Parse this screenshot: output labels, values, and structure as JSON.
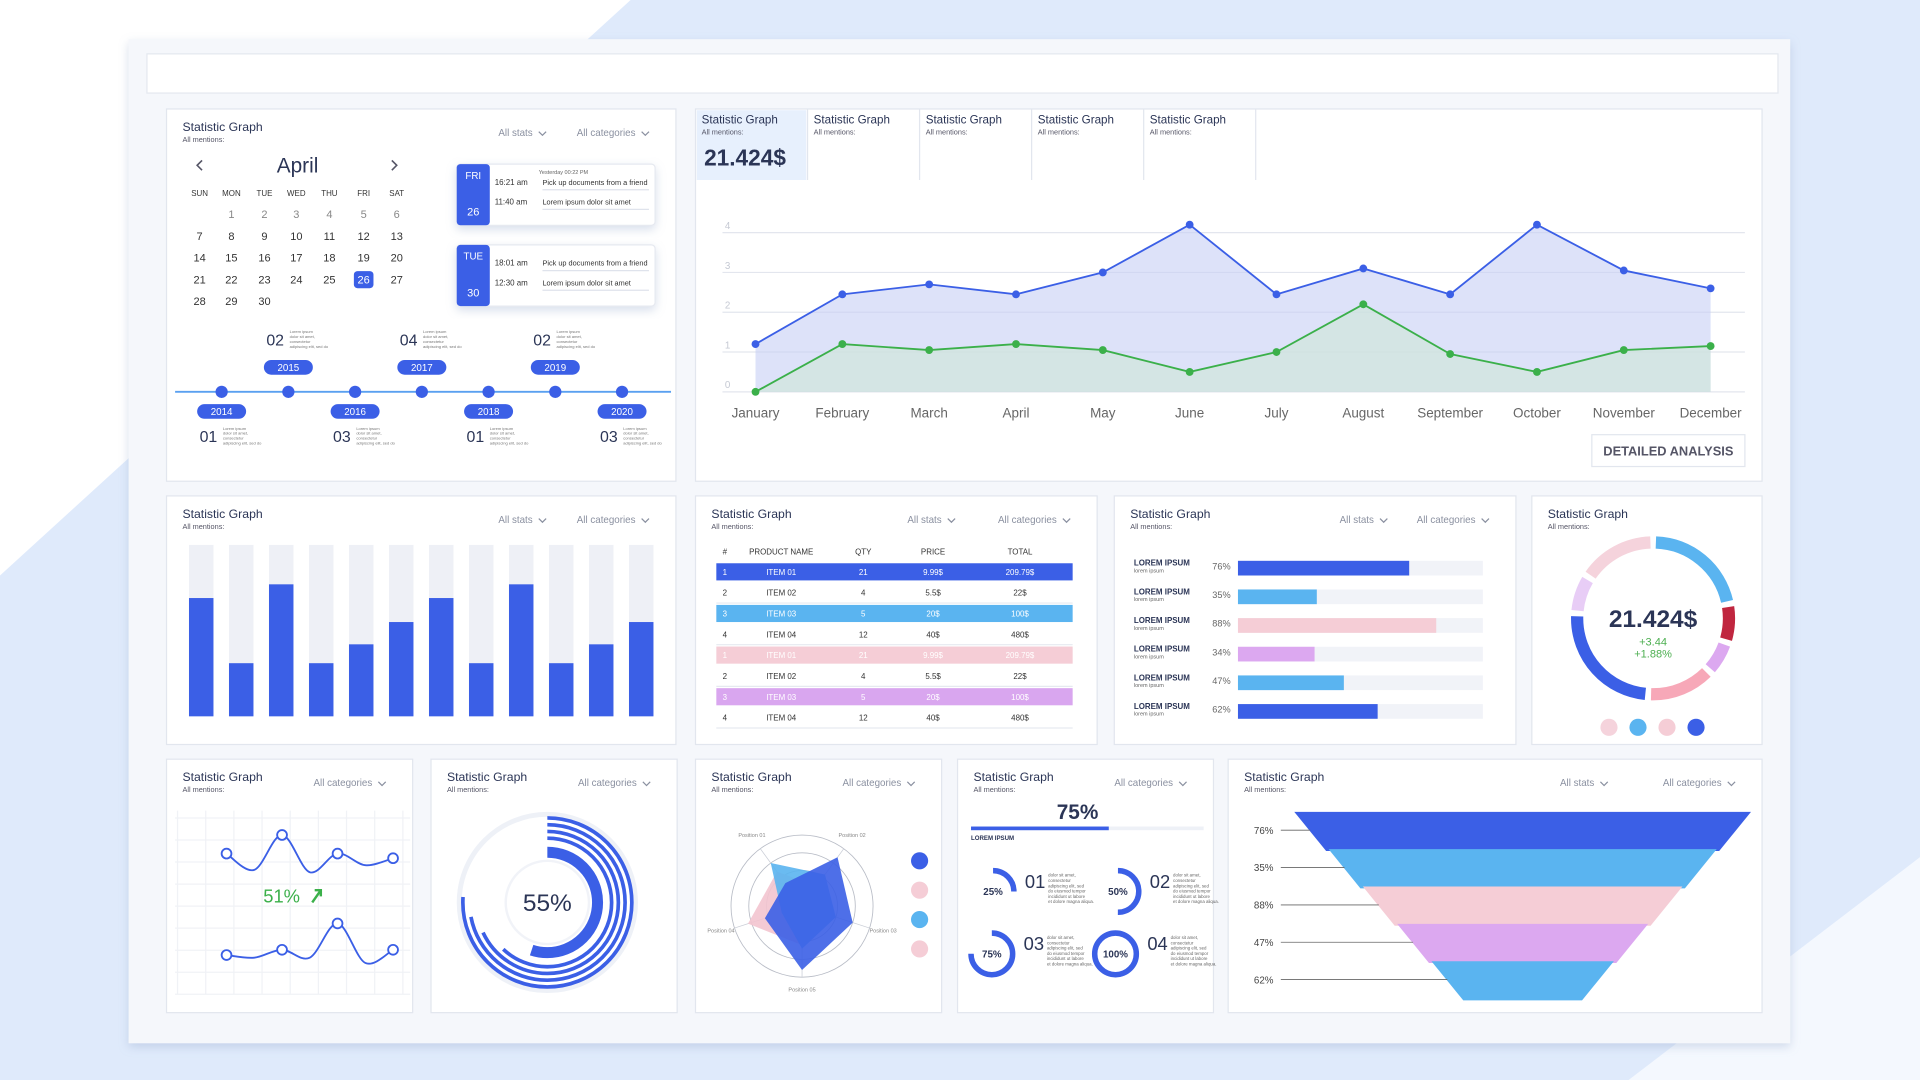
{
  "calendar": {
    "title": "Statistic Graph",
    "subtitle": "All mentions:",
    "filters": [
      "All stats",
      "All categories"
    ],
    "month": "April",
    "weekdays": [
      "SUN",
      "MON",
      "TUE",
      "WED",
      "THU",
      "FRI",
      "SAT"
    ],
    "days": [
      "1",
      "2",
      "3",
      "4",
      "5",
      "6",
      "7",
      "8",
      "9",
      "10",
      "11",
      "12",
      "13",
      "14",
      "15",
      "16",
      "17",
      "18",
      "19",
      "20",
      "21",
      "22",
      "23",
      "24",
      "25",
      "26",
      "27",
      "28",
      "29",
      "30"
    ],
    "selected_day": "26",
    "events": [
      {
        "day": "FRI",
        "date": "26",
        "header": "Yesterday 00:22 PM",
        "items": [
          {
            "time": "16:21 am",
            "text": "Pick up documents from a friend"
          },
          {
            "time": "11:40 am",
            "text": "Lorem ipsum dolor sit amet"
          }
        ]
      },
      {
        "day": "TUE",
        "date": "30",
        "items": [
          {
            "time": "18:01 am",
            "text": "Pick up documents from a friend"
          },
          {
            "time": "12:30 am",
            "text": "Lorem ipsum dolor sit amet"
          }
        ]
      }
    ],
    "timeline": {
      "years": [
        "2014",
        "2015",
        "2016",
        "2017",
        "2018",
        "2019",
        "2020"
      ],
      "counts": [
        "01",
        "02",
        "03",
        "04",
        "01",
        "02",
        "03"
      ],
      "note_lines": [
        "Lorem ipsum",
        "dolor sit amet,",
        "consectetur",
        "adipiscing elit, sed do"
      ]
    }
  },
  "line_panel": {
    "tabs": [
      {
        "title": "Statistic Graph",
        "subtitle": "All mentions:",
        "value": "21.424$"
      },
      {
        "title": "Statistic Graph",
        "subtitle": "All mentions:"
      },
      {
        "title": "Statistic Graph",
        "subtitle": "All mentions:"
      },
      {
        "title": "Statistic Graph",
        "subtitle": "All mentions:"
      },
      {
        "title": "Statistic Graph",
        "subtitle": "All mentions:"
      }
    ],
    "chart_data": {
      "type": "area",
      "categories": [
        "January",
        "February",
        "March",
        "April",
        "May",
        "June",
        "July",
        "August",
        "September",
        "October",
        "November",
        "December"
      ],
      "series": [
        {
          "color": "#3b5fe6",
          "fill": "#c7cff5",
          "values": [
            1.2,
            2.45,
            2.7,
            2.45,
            3.0,
            4.2,
            2.45,
            3.1,
            2.45,
            4.2,
            3.05,
            2.6
          ]
        },
        {
          "color": "#3bb04a",
          "fill": "#cfe7d6",
          "values": [
            0,
            1.2,
            1.05,
            1.2,
            1.05,
            0.5,
            1.0,
            2.2,
            0.95,
            0.5,
            1.05,
            1.15
          ]
        }
      ],
      "ylim": [
        0,
        4.4
      ],
      "yticks": [
        0,
        1,
        2,
        3,
        4
      ],
      "grid": true
    },
    "button": "DETAILED ANALYSIS"
  },
  "bar_panel": {
    "title": "Statistic Graph",
    "subtitle": "All mentions:",
    "filters": [
      "All stats",
      "All categories"
    ],
    "chart_data": {
      "type": "bar",
      "categories": [
        null,
        null,
        null,
        null,
        null,
        null,
        null,
        null,
        null,
        null,
        null,
        null
      ],
      "values": [
        69,
        31,
        77,
        31,
        42,
        55,
        69,
        31,
        77,
        31,
        42,
        55
      ],
      "ylim": [
        0,
        100
      ],
      "color": "#3b5fe6",
      "track_color": "#eef0f6"
    }
  },
  "table_panel": {
    "title": "Statistic Graph",
    "subtitle": "All mentions:",
    "filters": [
      "All stats",
      "All categories"
    ],
    "headers": [
      "#",
      "PRODUCT NAME",
      "QTY",
      "PRICE",
      "TOTAL"
    ],
    "rows": [
      [
        "1",
        "ITEM 01",
        "21",
        "9.99$",
        "209.79$"
      ],
      [
        "2",
        "ITEM 02",
        "4",
        "5.5$",
        "22$"
      ],
      [
        "3",
        "ITEM 03",
        "5",
        "20$",
        "100$"
      ],
      [
        "4",
        "ITEM 04",
        "12",
        "40$",
        "480$"
      ],
      [
        "1",
        "ITEM 01",
        "21",
        "9.99$",
        "209.79$"
      ],
      [
        "2",
        "ITEM 02",
        "4",
        "5.5$",
        "22$"
      ],
      [
        "3",
        "ITEM 03",
        "5",
        "20$",
        "100$"
      ],
      [
        "4",
        "ITEM 04",
        "12",
        "40$",
        "480$"
      ]
    ],
    "highlights": [
      "#3b5fe6",
      null,
      "#5ab4f0",
      null,
      "#f5cdd6",
      null,
      "#d9a6ef",
      null
    ]
  },
  "hbar_panel": {
    "title": "Statistic Graph",
    "subtitle": "All mentions:",
    "filters": [
      "All stats",
      "All categories"
    ],
    "chart_data": {
      "type": "hbar",
      "categories": [
        "LOREM IPSUM",
        "LOREM IPSUM",
        "LOREM IPSUM",
        "LOREM IPSUM",
        "LOREM IPSUM",
        "LOREM IPSUM"
      ],
      "sublabels": [
        "lorem ipsum",
        "lorem ipsum",
        "lorem ipsum",
        "lorem ipsum",
        "lorem ipsum",
        "lorem ipsum"
      ],
      "values": [
        76,
        35,
        88,
        34,
        47,
        62
      ],
      "value_labels": [
        "76%",
        "35%",
        "88%",
        "34%",
        "47%",
        "62%"
      ],
      "colors": [
        "#3b5fe6",
        "#5ab4f0",
        "#f5cdd6",
        "#dca8f0",
        "#5ab4f0",
        "#3b5fe6"
      ],
      "xlim": [
        0,
        100
      ]
    }
  },
  "donut_panel": {
    "title": "Statistic Graph",
    "subtitle": "All mentions:",
    "value": "21.424$",
    "changes": [
      "+3.44",
      "+1.88%"
    ],
    "chart_data": {
      "type": "donut",
      "values": [
        22,
        8,
        7,
        14,
        25,
        8,
        16
      ],
      "colors": [
        "#5ab4f0",
        "#c0263f",
        "#dca8f0",
        "#f7a8b8",
        "#3b5fe6",
        "#e8cdf6",
        "#f5d3dc"
      ]
    },
    "legend_colors": [
      "#f5d3dc",
      "#5ab4f0",
      "#f5cdd6",
      "#3b5fe6"
    ]
  },
  "spark_panel": {
    "title": "Statistic Graph",
    "subtitle": "All mentions:",
    "filters": [
      "All categories"
    ],
    "change": "51%",
    "chart_data": {
      "type": "line",
      "series": [
        {
          "color": "#3b5fe6",
          "values": [
            0.55,
            0.2,
            0.95,
            0.15,
            0.55,
            0.3,
            0.45
          ]
        },
        {
          "color": "#3b5fe6",
          "values": [
            0.35,
            0.3,
            0.45,
            0.3,
            0.95,
            0.2,
            0.45
          ]
        }
      ],
      "ylim": [
        0,
        1
      ]
    }
  },
  "radial_panel": {
    "title": "Statistic Graph",
    "subtitle": "All mentions:",
    "filters": [
      "All categories"
    ],
    "center_label": "55%",
    "chart_data": {
      "type": "radial",
      "values": [
        55,
        62,
        68,
        72,
        76
      ],
      "ylim": [
        0,
        100
      ],
      "color": "#3b5fe6"
    }
  },
  "radar_panel": {
    "title": "Statistic Graph",
    "subtitle": "All mentions:",
    "filters": [
      "All categories"
    ],
    "chart_data": {
      "type": "radar",
      "axes": [
        "Position 01",
        "Position 02",
        "Position 03",
        "Position 05",
        "Position 04"
      ],
      "rlim": [
        0,
        1
      ],
      "series": [
        {
          "color": "#f3c4cf",
          "values": [
            0.6,
            0.35,
            0.45,
            0.55,
            0.8
          ]
        },
        {
          "color": "#5ab4f0",
          "values": [
            0.75,
            0.55,
            0.5,
            0.6,
            0.3
          ]
        },
        {
          "color": "#3b5fe6",
          "values": [
            0.4,
            0.85,
            0.75,
            0.9,
            0.55
          ]
        }
      ]
    },
    "legend_colors": [
      "#3b5fe6",
      "#f5cdd6",
      "#5ab4f0",
      "#f5cdd6"
    ]
  },
  "progress_panel": {
    "title": "Statistic Graph",
    "subtitle": "All mentions:",
    "filters": [
      "All categories"
    ],
    "chart_data": {
      "type": "progress",
      "value": 75,
      "value_label": "75%",
      "xlim": [
        0,
        100
      ]
    },
    "label": "LOREM IPSUM",
    "items": [
      {
        "number": "01",
        "value": 25,
        "value_label": "25%"
      },
      {
        "number": "02",
        "value": 50,
        "value_label": "50%"
      },
      {
        "number": "03",
        "value": 75,
        "value_label": "75%"
      },
      {
        "number": "04",
        "value": 100,
        "value_label": "100%"
      }
    ],
    "note_lines": [
      "dolor sit amet,",
      "consectetur",
      "adipiscing elit, sed",
      "do eiusmod tempor",
      "incididunt ut labore",
      "et dolore magna aliqua."
    ]
  },
  "funnel_panel": {
    "title": "Statistic Graph",
    "subtitle": "All mentions:",
    "filters": [
      "All stats",
      "All categories"
    ],
    "stages": [
      {
        "label": "76%",
        "color": "#3b5fe6"
      },
      {
        "label": "35%",
        "color": "#5ab4f0"
      },
      {
        "label": "88%",
        "color": "#f5cdd6"
      },
      {
        "label": "47%",
        "color": "#dca8f0"
      },
      {
        "label": "62%",
        "color": "#5ab4f0"
      }
    ]
  }
}
